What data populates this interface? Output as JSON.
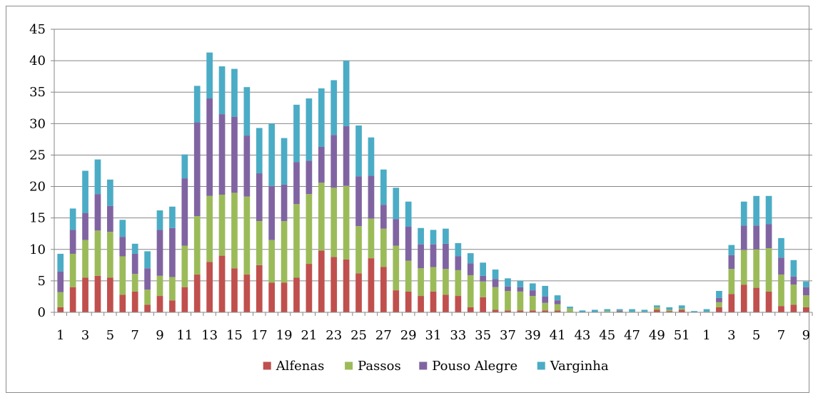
{
  "chart_data": {
    "type": "bar",
    "stacked": true,
    "title": "",
    "xlabel": "",
    "ylabel": "",
    "ylim": [
      0,
      45
    ],
    "yticks": [
      0,
      5,
      10,
      15,
      20,
      25,
      30,
      35,
      40,
      45
    ],
    "grid": true,
    "legend_position": "bottom",
    "categories": [
      "1",
      "2",
      "3",
      "4",
      "5",
      "6",
      "7",
      "8",
      "9",
      "10",
      "11",
      "12",
      "13",
      "14",
      "15",
      "16",
      "17",
      "18",
      "19",
      "20",
      "21",
      "22",
      "23",
      "24",
      "25",
      "26",
      "27",
      "28",
      "29",
      "30",
      "31",
      "32",
      "33",
      "34",
      "35",
      "36",
      "37",
      "38",
      "39",
      "40",
      "41",
      "42",
      "43",
      "44",
      "45",
      "46",
      "47",
      "48",
      "49",
      "50",
      "51",
      "52",
      "1",
      "2",
      "3",
      "4",
      "5",
      "6",
      "7",
      "8",
      "9"
    ],
    "xtick_labels": [
      "1",
      "",
      "3",
      "",
      "5",
      "",
      "7",
      "",
      "9",
      "",
      "11",
      "",
      "13",
      "",
      "15",
      "",
      "17",
      "",
      "19",
      "",
      "21",
      "",
      "23",
      "",
      "25",
      "",
      "27",
      "",
      "29",
      "",
      "31",
      "",
      "33",
      "",
      "35",
      "",
      "37",
      "",
      "39",
      "",
      "41",
      "",
      "43",
      "",
      "45",
      "",
      "47",
      "",
      "49",
      "",
      "51",
      "",
      "1",
      "",
      "3",
      "",
      "5",
      "",
      "7",
      "",
      "9"
    ],
    "series": [
      {
        "name": "Alfenas",
        "color": "#c0504d",
        "values": [
          0.8,
          4,
          5.5,
          5.8,
          5.5,
          2.8,
          3.3,
          1.2,
          2.6,
          1.9,
          4,
          6,
          8,
          9,
          7,
          6,
          7.5,
          4.7,
          4.7,
          5.5,
          7.7,
          9.8,
          8.8,
          8.4,
          6.2,
          8.6,
          7.2,
          3.5,
          3.3,
          2.6,
          3.3,
          2.8,
          2.6,
          0.8,
          2.4,
          0.4,
          0.3,
          0.3,
          0.3,
          0.3,
          0.3,
          0,
          0,
          0,
          0,
          0.2,
          0,
          0,
          0.4,
          0.2,
          0.4,
          0,
          0,
          0.8,
          2.9,
          4.4,
          3.9,
          3.3,
          1.0,
          1.2,
          0.8
        ]
      },
      {
        "name": "Passos",
        "color": "#9bbb59",
        "values": [
          2.4,
          5.3,
          6,
          7.2,
          7.3,
          6.1,
          2.8,
          2.4,
          3.2,
          3.7,
          6.6,
          9.3,
          10.5,
          9.7,
          12,
          12.4,
          7,
          6.8,
          9.8,
          11.7,
          11.1,
          10.8,
          11,
          11.7,
          7.5,
          6.3,
          6.1,
          7.1,
          4.9,
          4.4,
          3.9,
          4.1,
          4.1,
          5.1,
          2.5,
          3.6,
          3.1,
          3,
          2.3,
          1.2,
          1,
          0.6,
          0,
          0,
          0.2,
          0,
          0.1,
          0.1,
          0.4,
          0.2,
          0.2,
          0,
          0.1,
          0.8,
          4,
          5.5,
          6.1,
          6.9,
          5,
          3.2,
          1.9
        ]
      },
      {
        "name": "Pouso Alegre",
        "color": "#8064a2",
        "values": [
          3.3,
          3.8,
          4.3,
          5.8,
          4.1,
          3.1,
          3.2,
          3.4,
          7.3,
          7.8,
          10.7,
          14.9,
          15.5,
          12.8,
          12.1,
          9.7,
          7.6,
          8.6,
          5.8,
          6.7,
          5.3,
          5.7,
          8.4,
          9.5,
          7.9,
          6.8,
          3.8,
          4.2,
          5.4,
          3.8,
          3.6,
          4,
          2.2,
          1.9,
          0.9,
          1.3,
          0.7,
          0.7,
          0.9,
          1,
          0.6,
          0,
          0,
          0,
          0,
          0,
          0,
          0,
          0,
          0,
          0,
          0,
          0,
          0.7,
          2.2,
          3.9,
          3.8,
          3.8,
          2.7,
          1.3,
          1.3
        ]
      },
      {
        "name": "Varginha",
        "color": "#4bacc6",
        "values": [
          2.8,
          3.4,
          6.7,
          5.5,
          4.2,
          2.7,
          1.6,
          2.7,
          3.1,
          3.4,
          3.8,
          5.8,
          7.3,
          7.6,
          7.6,
          7.7,
          7.2,
          9.9,
          7.4,
          9.1,
          9.9,
          9.3,
          8.7,
          10.4,
          8.1,
          6.1,
          5.6,
          5,
          4,
          2.6,
          2.3,
          2.4,
          2.1,
          1.6,
          2.1,
          1.5,
          1.3,
          1,
          1.1,
          1.7,
          0.8,
          0.3,
          0.3,
          0.4,
          0.3,
          0.3,
          0.4,
          0.3,
          0.3,
          0.4,
          0.5,
          0.2,
          0.4,
          1.1,
          1.6,
          3.8,
          4.7,
          4.5,
          3.1,
          2.6,
          0.9
        ]
      }
    ]
  }
}
